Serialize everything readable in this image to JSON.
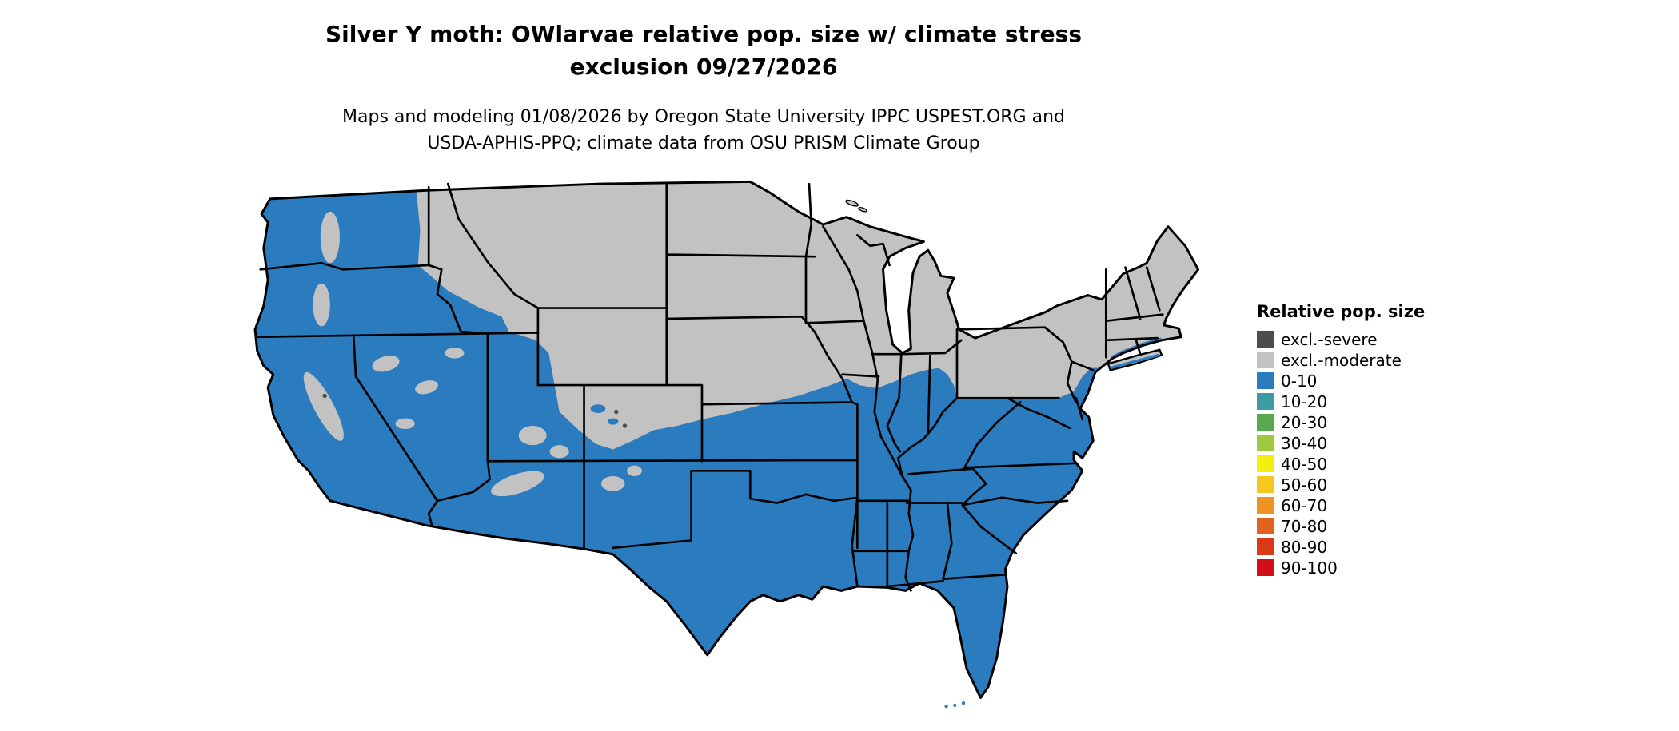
{
  "title": {
    "line1": "Silver Y moth: OWlarvae relative pop. size w/ climate stress",
    "line2": "exclusion 09/27/2026"
  },
  "subtitle": {
    "line1": "Maps and modeling 01/08/2026 by Oregon State University IPPC USPEST.ORG and",
    "line2": "USDA-APHIS-PPQ; climate data from OSU PRISM Climate Group"
  },
  "legend": {
    "title": "Relative pop. size",
    "items": [
      {
        "label": "excl.-severe",
        "color": "#4d4d4d"
      },
      {
        "label": "excl.-moderate",
        "color": "#c2c2c2"
      },
      {
        "label": "0-10",
        "color": "#2b7bbf"
      },
      {
        "label": "10-20",
        "color": "#3d9ba4"
      },
      {
        "label": "20-30",
        "color": "#59a84f"
      },
      {
        "label": "30-40",
        "color": "#9ec93e"
      },
      {
        "label": "40-50",
        "color": "#f2ef0f"
      },
      {
        "label": "50-60",
        "color": "#f4c81c"
      },
      {
        "label": "60-70",
        "color": "#ef9422"
      },
      {
        "label": "70-80",
        "color": "#e2631d"
      },
      {
        "label": "80-90",
        "color": "#d93a1a"
      },
      {
        "label": "90-100",
        "color": "#cf1117"
      }
    ]
  },
  "map": {
    "description": "Continental United States choropleth of Silver Y moth overwintering larvae relative population size",
    "colors": {
      "zone_0_10": "#2b7bbf",
      "excl_moderate": "#c2c2c2",
      "excl_severe": "#4d4d4d",
      "state_border": "#000000",
      "background": "#ffffff"
    }
  }
}
